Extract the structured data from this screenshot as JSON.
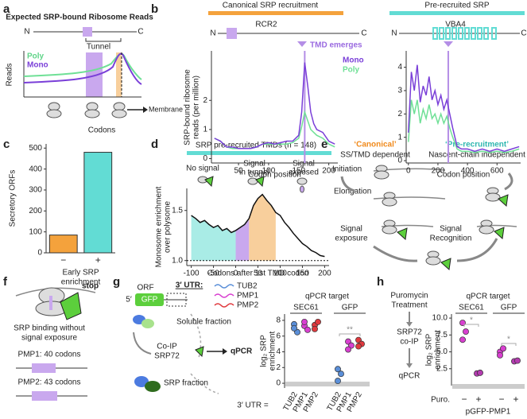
{
  "panels": {
    "a": {
      "label": "a",
      "title": "Expected SRP-bound Ribosome Reads",
      "n": "N",
      "c": "C",
      "tunnel": "Tunnel",
      "y_label": "Reads",
      "legend": [
        "Poly",
        "Mono"
      ],
      "membrane": "Membrane",
      "x_label": "Codons"
    },
    "b": {
      "label": "b",
      "left_header": "Canonical SRP recruitment",
      "right_header": "Pre-recruited SRP",
      "left_gene": "RCR2",
      "right_gene": "VBA4",
      "tmd": "TMD emerges",
      "n": "N",
      "c": "C",
      "y_label": [
        "SRP-bound ribosome",
        "reads (per million)"
      ]
    },
    "c": {
      "label": "c"
    },
    "d": {
      "label": "d",
      "header": "SRP pre-recruited TMDs (n = 148)",
      "states": [
        [
          "No signal"
        ],
        [
          "Signal",
          "in tunnel"
        ],
        [
          "Signal",
          "exposed"
        ]
      ]
    },
    "e": {
      "label": "e",
      "left_title": "‘Canonical’",
      "left_sub": "SS/TMD dependent",
      "right_title": "‘Pre-recruitment’",
      "right_sub": "Nascent-chain independent",
      "steps": [
        "Initiation",
        "Elongation"
      ],
      "exposure": [
        "Signal",
        "exposure"
      ],
      "recognition": [
        "Signal",
        "Recognition"
      ]
    },
    "f": {
      "label": "f",
      "stop": "stop",
      "caption": [
        "SRP binding without",
        "signal exposure"
      ],
      "pmp1": "PMP1: 40 codons",
      "pmp2": "PMP2: 43 codons"
    },
    "g": {
      "label": "g",
      "orf": "ORF",
      "five": "5′",
      "gfp": "GFP",
      "utr": "3′ UTR:",
      "soluble": "Soluble fraction",
      "coip": [
        "Co-IP",
        "SRP72"
      ],
      "qpcr": "qPCR",
      "srp_fraction": "SRP fraction",
      "utr_eq": "3′ UTR ="
    },
    "h": {
      "label": "h",
      "steps": [
        [
          "Puromycin",
          "Treatment"
        ],
        [
          "SRP72",
          "co-IP"
        ],
        [
          "qPCR"
        ]
      ],
      "puro": "Puro.",
      "construct": "pGFP-PMP1"
    }
  },
  "chart_data": [
    {
      "type": "line",
      "x_label": "Codon position",
      "xlim": [
        5,
        215
      ],
      "xticks": [
        50,
        100,
        150,
        200
      ],
      "ylim": [
        -0.15,
        3.7
      ],
      "yticks": [
        0,
        1,
        2
      ],
      "vline": 160,
      "vline_color": "#b48ee6",
      "legend": "upper right",
      "x": [
        10,
        20,
        30,
        40,
        50,
        60,
        70,
        80,
        90,
        100,
        110,
        120,
        130,
        140,
        150,
        155,
        160,
        165,
        170,
        175,
        180,
        190,
        200,
        210
      ],
      "series": [
        {
          "name": "Poly",
          "color": "#6fe096",
          "values": [
            0.7,
            0.6,
            0.4,
            0.35,
            0.35,
            0.35,
            0.35,
            0.4,
            0.5,
            0.5,
            0.5,
            0.5,
            0.5,
            0.55,
            0.7,
            1.1,
            1.6,
            1.3,
            1.0,
            0.9,
            0.8,
            0.7,
            0.5,
            0.4
          ]
        },
        {
          "name": "Mono",
          "color": "#7a3fd8",
          "values": [
            0.7,
            0.6,
            0.4,
            0.4,
            0.35,
            0.35,
            0.35,
            0.4,
            0.5,
            0.55,
            0.5,
            0.55,
            0.6,
            0.6,
            0.8,
            1.6,
            3.3,
            2.5,
            1.6,
            1.2,
            1.0,
            0.9,
            0.6,
            0.5
          ]
        }
      ]
    },
    {
      "type": "line",
      "x_label": "Codon position",
      "xlim": [
        -15,
        760
      ],
      "xticks": [
        0,
        200,
        400,
        600
      ],
      "ylim": [
        -0.1,
        4.7
      ],
      "yticks": [
        0,
        1,
        2,
        3,
        4
      ],
      "vline": 270,
      "vline_color": "#b48ee6",
      "x": [
        0,
        20,
        40,
        60,
        80,
        100,
        120,
        140,
        160,
        180,
        200,
        220,
        240,
        260,
        280,
        300,
        330,
        360,
        400,
        450,
        500,
        550,
        600,
        650,
        700,
        750
      ],
      "series": [
        {
          "name": "Poly",
          "color": "#6fe096",
          "values": [
            0.8,
            2.6,
            2.0,
            2.6,
            1.6,
            2.2,
            1.8,
            2.4,
            1.8,
            2.0,
            1.6,
            2.0,
            1.6,
            1.9,
            1.4,
            1.0,
            0.5,
            0.4,
            0.4,
            0.35,
            0.4,
            0.35,
            0.4,
            0.35,
            0.4,
            0.5
          ]
        },
        {
          "name": "Mono",
          "color": "#7a3fd8",
          "values": [
            1.2,
            3.8,
            3.0,
            4.1,
            2.5,
            3.2,
            2.8,
            3.6,
            2.6,
            3.0,
            2.4,
            2.8,
            2.2,
            2.6,
            2.0,
            1.4,
            0.6,
            0.5,
            0.5,
            0.4,
            0.5,
            0.4,
            0.5,
            0.4,
            0.5,
            0.6
          ]
        }
      ]
    },
    {
      "type": "bar",
      "y_label": "Secretory ORFs",
      "x_label": [
        "Early SRP",
        "enrichment"
      ],
      "categories": [
        "−",
        "+"
      ],
      "values": [
        85,
        480
      ],
      "colors": [
        "#f4a23c",
        "#62dcd4"
      ],
      "ylim": [
        0,
        520
      ],
      "yticks": [
        0,
        100,
        200,
        300,
        400,
        500
      ]
    },
    {
      "type": "line",
      "x_label": "Codons after 1st TMD codon",
      "y_label": [
        "Monosome enrichment",
        "over polysome"
      ],
      "xlim": [
        -110,
        210
      ],
      "xticks": [
        -100,
        -50,
        0,
        50,
        100,
        150,
        200
      ],
      "ylim": [
        0.95,
        1.72
      ],
      "yticks": [
        {
          "value": 1,
          "label": "1.0"
        },
        1.5
      ],
      "baseline": 1,
      "regions": [
        {
          "xlim": [
            -100,
            0
          ],
          "color": "#a9ece6"
        },
        {
          "xlim": [
            0,
            30
          ],
          "color": "#c9a8ee"
        },
        {
          "xlim": [
            30,
            90
          ],
          "color": "#f8cf9c"
        }
      ],
      "x": [
        -100,
        -90,
        -80,
        -70,
        -60,
        -50,
        -40,
        -30,
        -20,
        -10,
        0,
        10,
        20,
        30,
        40,
        50,
        60,
        70,
        80,
        90,
        100,
        110,
        120,
        130,
        140,
        150,
        160,
        170,
        180,
        190,
        200
      ],
      "series": [
        {
          "color": "#111111",
          "values": [
            1.45,
            1.42,
            1.38,
            1.4,
            1.36,
            1.33,
            1.35,
            1.3,
            1.32,
            1.28,
            1.3,
            1.33,
            1.36,
            1.42,
            1.55,
            1.62,
            1.66,
            1.6,
            1.55,
            1.48,
            1.45,
            1.38,
            1.33,
            1.27,
            1.22,
            1.17,
            1.14,
            1.1,
            1.08,
            1.05,
            1.04
          ]
        }
      ]
    },
    {
      "type": "dot",
      "title": "qPCR target",
      "y_label": [
        "log₂ SRP",
        "enrichment"
      ],
      "groups": [
        "SEC61",
        "GFP"
      ],
      "ylim": [
        -0.6,
        8.8
      ],
      "yticks": [
        0,
        2,
        4,
        6,
        8
      ],
      "annotation": "**",
      "series": [
        {
          "name": "TUB2",
          "color": "#5b8fd8",
          "values": [
            [
              7.5,
              6.5,
              7.0
            ],
            [
              0.3,
              1.2,
              1.8
            ]
          ]
        },
        {
          "name": "PMP1",
          "color": "#d83fd0",
          "values": [
            [
              7.3,
              6.8,
              7.8
            ],
            [
              5.3,
              4.8,
              4.3
            ]
          ]
        },
        {
          "name": "PMP2",
          "color": "#e0393e",
          "values": [
            [
              7.4,
              7.8,
              6.9
            ],
            [
              5.5,
              5.0,
              4.7
            ]
          ]
        }
      ]
    },
    {
      "type": "dot",
      "title": "qPCR target",
      "y_label": [
        "log₂ SRP",
        "enrichment"
      ],
      "groups": [
        "SEC61",
        "GFP"
      ],
      "ylim": [
        0,
        10.6
      ],
      "yticks": [
        2.5,
        {
          "value": 5,
          "label": "5.0"
        },
        7.5,
        {
          "value": 10,
          "label": "10.0"
        }
      ],
      "annotation": "*",
      "series": [
        {
          "name": "−",
          "color": "#d83fd0",
          "values": [
            [
              9.3,
              8.0,
              6.8
            ],
            [
              5.0,
              5.5,
              4.5
            ]
          ]
        },
        {
          "name": "+",
          "color": "#b43cb0",
          "values": [
            [
              1.8,
              1.9
            ],
            [
              3.6,
              3.7
            ]
          ]
        }
      ]
    }
  ]
}
